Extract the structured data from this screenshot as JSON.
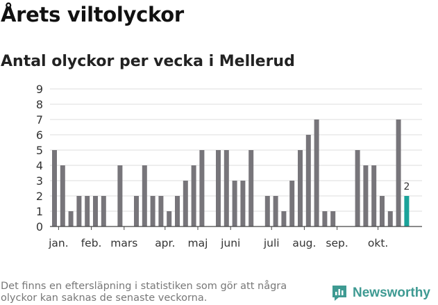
{
  "header": {
    "title": "Årets viltolyckor",
    "subtitle": "Antal olyckor per vecka i Mellerud"
  },
  "footer": {
    "note": "Det finns en eftersläpning i statistiken som gör att några olyckor kan saknas de senaste veckorna.",
    "brand": "Newsworthy"
  },
  "colors": {
    "bar": "#77757a",
    "highlight": "#1aa39a",
    "brand": "#3e9a92",
    "grid": "#dddddd"
  },
  "chart_data": {
    "type": "bar",
    "title": "Antal olyckor per vecka i Mellerud",
    "xlabel": "",
    "ylabel": "",
    "ylim": [
      0,
      9
    ],
    "yticks": [
      0,
      1,
      2,
      3,
      4,
      5,
      6,
      7,
      8,
      9
    ],
    "grid": true,
    "weeks": [
      1,
      2,
      3,
      4,
      5,
      6,
      7,
      8,
      9,
      10,
      11,
      12,
      13,
      14,
      15,
      16,
      17,
      18,
      19,
      20,
      21,
      22,
      23,
      24,
      25,
      26,
      27,
      28,
      29,
      30,
      31,
      32,
      33,
      34,
      35,
      36,
      37,
      38,
      39,
      40,
      41,
      42,
      43
    ],
    "values": [
      5,
      4,
      1,
      2,
      2,
      2,
      2,
      0,
      4,
      0,
      2,
      4,
      2,
      2,
      1,
      2,
      3,
      4,
      5,
      0,
      5,
      5,
      3,
      3,
      5,
      0,
      2,
      2,
      1,
      3,
      5,
      6,
      7,
      1,
      1,
      0,
      0,
      5,
      4,
      4,
      2,
      1,
      7
    ],
    "highlight": {
      "week": 44,
      "value": 2,
      "label": "2"
    },
    "month_labels": [
      {
        "label": "jan.",
        "week": 1.5
      },
      {
        "label": "feb.",
        "week": 5.5
      },
      {
        "label": "mars",
        "week": 9.5
      },
      {
        "label": "apr.",
        "week": 14.5
      },
      {
        "label": "maj",
        "week": 18.5
      },
      {
        "label": "juni",
        "week": 22.5
      },
      {
        "label": "juli",
        "week": 27.5
      },
      {
        "label": "aug.",
        "week": 31.5
      },
      {
        "label": "sep.",
        "week": 35.5
      },
      {
        "label": "okt.",
        "week": 40.5
      }
    ]
  }
}
